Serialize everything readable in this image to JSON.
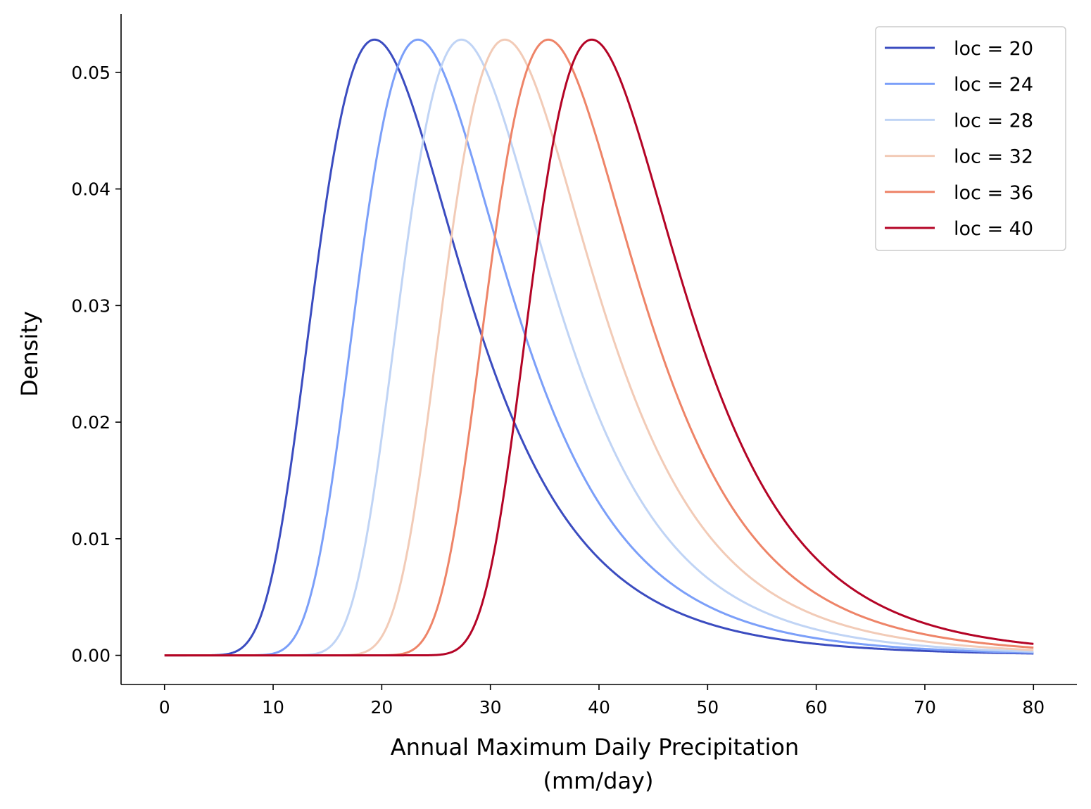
{
  "chart_data": {
    "type": "line",
    "xlabel": "Annual Maximum Daily Precipitation",
    "xlabel_line2": "(mm/day)",
    "ylabel": "Density",
    "xlim": [
      -4,
      84
    ],
    "ylim": [
      -0.0025,
      0.055
    ],
    "xticks": [
      0,
      10,
      20,
      30,
      40,
      50,
      60,
      70,
      80
    ],
    "xtick_labels": [
      "0",
      "10",
      "20",
      "30",
      "40",
      "50",
      "60",
      "70",
      "80"
    ],
    "yticks": [
      0.0,
      0.01,
      0.02,
      0.03,
      0.04,
      0.05
    ],
    "ytick_labels": [
      "0.00",
      "0.01",
      "0.02",
      "0.03",
      "0.04",
      "0.05"
    ],
    "grid": false,
    "legend_position": "top-right",
    "x_range": [
      0,
      80
    ],
    "distribution": "gev",
    "scale": 7,
    "shape_c": -0.1,
    "series": [
      {
        "name": "loc = 20",
        "loc": 20,
        "color": "#3b4cc0",
        "peak_x": 20,
        "peak_y": 0.0526
      },
      {
        "name": "loc = 24",
        "loc": 24,
        "color": "#7b9ff9",
        "peak_x": 24,
        "peak_y": 0.0526
      },
      {
        "name": "loc = 28",
        "loc": 28,
        "color": "#c0d4f5",
        "peak_x": 28,
        "peak_y": 0.0526
      },
      {
        "name": "loc = 32",
        "loc": 32,
        "color": "#f2cbb7",
        "peak_x": 32,
        "peak_y": 0.0526
      },
      {
        "name": "loc = 36",
        "loc": 36,
        "color": "#ee8468",
        "peak_x": 36,
        "peak_y": 0.0526
      },
      {
        "name": "loc = 40",
        "loc": 40,
        "color": "#b40426",
        "peak_x": 40,
        "peak_y": 0.0526
      }
    ]
  }
}
